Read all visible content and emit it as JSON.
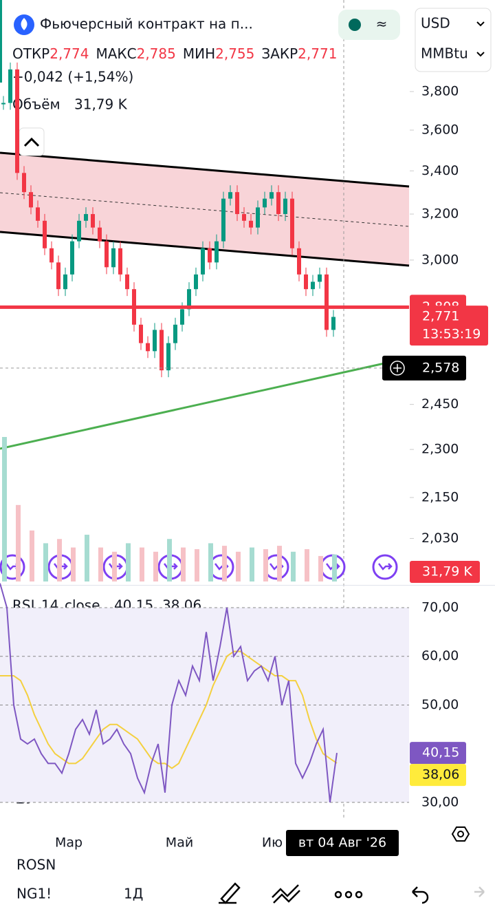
{
  "header": {
    "title": "Фьючерсный контракт на п...",
    "currency": "USD",
    "unit": "MMBtu",
    "ohlc": [
      {
        "label": "ОТКР",
        "value": "2,774"
      },
      {
        "label": "МАКС",
        "value": "2,785"
      },
      {
        "label": "МИН",
        "value": "2,755"
      },
      {
        "label": "ЗАКР",
        "value": "2,771"
      }
    ],
    "change": "+0,042 (+1,54%)",
    "volume_label": "Объём",
    "volume_value": "31,79 K"
  },
  "price_pane": {
    "log_scale": true,
    "ylim": [
      1.911,
      4.321
    ],
    "yticks": [
      {
        "value": 3.8,
        "label": "3,800"
      },
      {
        "value": 3.6,
        "label": "3,600"
      },
      {
        "value": 3.4,
        "label": "3,400"
      },
      {
        "value": 3.2,
        "label": "3,200"
      },
      {
        "value": 3.0,
        "label": "3,000"
      },
      {
        "value": 2.45,
        "label": "2,450"
      },
      {
        "value": 2.3,
        "label": "2,300"
      },
      {
        "value": 2.15,
        "label": "2,150"
      },
      {
        "value": 2.03,
        "label": "2,030"
      }
    ],
    "closes": [
      3.74,
      3.92,
      3.39,
      3.3,
      3.23,
      3.17,
      3.05,
      2.99,
      2.88,
      2.94,
      3.08,
      3.17,
      3.2,
      3.14,
      3.08,
      2.97,
      3.05,
      2.94,
      2.88,
      2.74,
      2.67,
      2.64,
      2.72,
      2.57,
      2.67,
      2.74,
      2.8,
      2.88,
      2.94,
      3.05,
      2.99,
      3.08,
      3.27,
      3.3,
      3.2,
      3.17,
      3.14,
      3.23,
      3.27,
      3.3,
      3.2,
      3.27,
      3.05,
      2.94,
      2.88,
      2.91,
      2.94,
      2.72,
      2.77
    ],
    "level": {
      "value": 2.808,
      "label": "2,808"
    },
    "last": {
      "value": 2.771,
      "label": "2,771",
      "timer": "13:53:19"
    },
    "crosshair": {
      "value": 2.578,
      "label": "2,578"
    },
    "volumes": [
      170,
      90,
      60,
      45,
      50,
      40,
      55,
      40,
      35,
      45,
      40,
      35,
      50,
      40,
      38,
      45,
      42,
      35,
      40,
      38,
      42,
      35,
      38,
      30,
      31.79
    ],
    "vlim": [
      0,
      170
    ],
    "volume_tag": "31,79 K"
  },
  "rsi_pane": {
    "name": "RSI",
    "length": "14",
    "source": "close",
    "value_label": "40,15",
    "ma_label": "38,06",
    "ylim": [
      26.6,
      74.66
    ],
    "yticks": [
      {
        "value": 70,
        "label": "70,00"
      },
      {
        "value": 60,
        "label": "60,00"
      },
      {
        "value": 50,
        "label": "50,00"
      },
      {
        "value": 30,
        "label": "30,00"
      }
    ],
    "rsi": [
      75,
      70,
      50,
      43,
      42,
      43,
      40,
      38,
      38,
      36,
      40,
      45,
      47,
      44,
      49,
      42,
      43,
      45,
      42,
      40,
      35,
      32,
      38,
      42,
      32,
      50,
      55,
      52,
      58,
      55,
      65,
      55,
      62,
      70,
      60,
      62,
      55,
      57,
      58,
      55,
      60,
      50,
      55,
      38,
      35,
      38,
      42,
      45,
      30,
      40.15
    ],
    "ma": [
      56,
      56,
      56,
      55,
      52,
      48,
      45,
      42,
      40,
      39,
      38,
      38,
      39,
      41,
      43,
      45,
      46,
      46,
      45,
      44,
      43,
      41,
      39,
      38,
      38,
      37,
      38,
      41,
      44,
      47,
      50,
      54,
      57,
      60,
      61,
      61,
      60,
      59,
      58,
      57,
      56,
      56,
      55,
      55,
      52,
      47,
      43,
      40,
      39,
      38.06
    ]
  },
  "time_axis": {
    "labels": [
      "Мар",
      "Май",
      "Ию"
    ],
    "crosshair": "вт 04 Авг '26"
  },
  "toolbar": {
    "symbol": "NG1!",
    "interval": "1Д",
    "ghost": "ROSN"
  }
}
